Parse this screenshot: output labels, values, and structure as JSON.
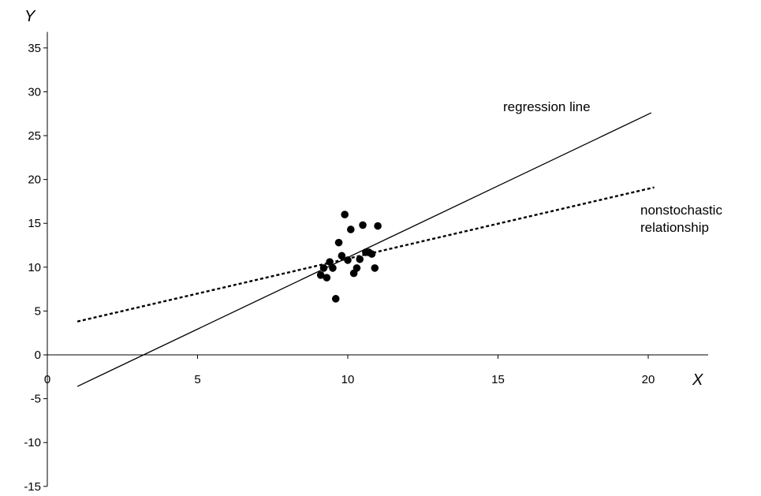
{
  "chart_data": {
    "type": "scatter",
    "title": "",
    "xlabel": "X",
    "ylabel": "Y",
    "xlim": [
      0,
      22
    ],
    "ylim": [
      -15,
      37
    ],
    "x_ticks": [
      0,
      5,
      10,
      15,
      20
    ],
    "y_ticks": [
      -15,
      -10,
      -5,
      0,
      5,
      10,
      15,
      20,
      25,
      30,
      35
    ],
    "x_tick_labels": [
      "0",
      "5",
      "10",
      "15",
      "20"
    ],
    "y_tick_labels": [
      "-15",
      "-10",
      "-5",
      "0",
      "5",
      "10",
      "15",
      "20",
      "25",
      "30",
      "35"
    ],
    "grid": false,
    "points": [
      {
        "x": 9.1,
        "y": 9.1
      },
      {
        "x": 9.2,
        "y": 9.9
      },
      {
        "x": 9.3,
        "y": 8.8
      },
      {
        "x": 9.4,
        "y": 10.6
      },
      {
        "x": 9.5,
        "y": 9.9
      },
      {
        "x": 9.6,
        "y": 6.4
      },
      {
        "x": 9.7,
        "y": 12.8
      },
      {
        "x": 9.8,
        "y": 11.3
      },
      {
        "x": 9.9,
        "y": 16.0
      },
      {
        "x": 10.0,
        "y": 10.8
      },
      {
        "x": 10.1,
        "y": 14.3
      },
      {
        "x": 10.2,
        "y": 9.3
      },
      {
        "x": 10.3,
        "y": 9.9
      },
      {
        "x": 10.4,
        "y": 10.9
      },
      {
        "x": 10.5,
        "y": 14.8
      },
      {
        "x": 10.6,
        "y": 11.7
      },
      {
        "x": 10.7,
        "y": 11.7
      },
      {
        "x": 10.8,
        "y": 11.5
      },
      {
        "x": 10.9,
        "y": 9.9
      },
      {
        "x": 11.0,
        "y": 14.7
      }
    ],
    "lines": [
      {
        "style": "solid",
        "label": "regression line",
        "x": [
          1,
          20.1
        ],
        "y": [
          -3.6,
          27.6
        ]
      },
      {
        "style": "dashed",
        "label": "nonstochastic relationship",
        "x": [
          1,
          20.2
        ],
        "y": [
          3.8,
          19.1
        ]
      }
    ]
  }
}
